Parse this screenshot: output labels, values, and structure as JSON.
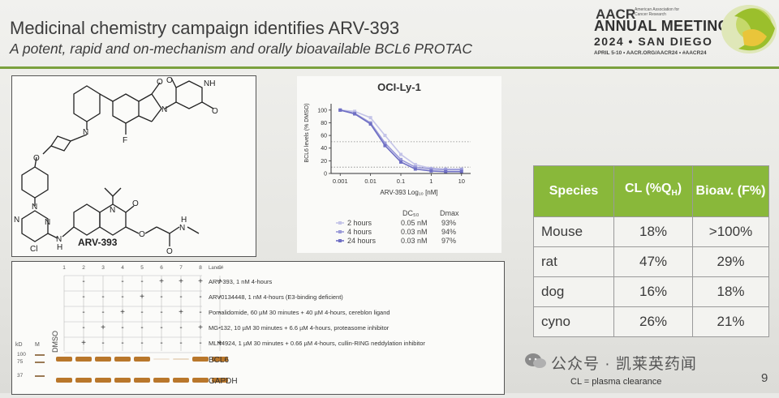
{
  "slide": {
    "title": "Medicinal chemistry campaign identifies ARV-393",
    "subtitle": "A potent, rapid and on-mechanism and orally bioavailable BCL6 PROTAC",
    "page_number": "9"
  },
  "logo": {
    "aacr": "AACR",
    "association": "American Association for Cancer Research",
    "meeting": "ANNUAL MEETING",
    "year_city": "2024 • SAN DIEGO",
    "dates": "APRIL 5-10 • AACR.ORG/AACR24 • #AACR24"
  },
  "chemistry": {
    "compound_label": "ARV-393",
    "atoms": {
      "o_top": "O",
      "o_top2": "O",
      "o_right": "O",
      "nh": "NH",
      "n1": "N",
      "n2": "N",
      "f": "F",
      "o_link": "O",
      "n_pip": "N",
      "n_pyr1": "N",
      "n_pyr2": "N",
      "cl": "Cl",
      "nh2": "N",
      "h2": "H",
      "n_q": "N",
      "o_q": "O",
      "o_e": "O",
      "o_am": "O",
      "n_am": "N",
      "h_am": "H"
    }
  },
  "chart": {
    "title": "OCI-Ly-1",
    "ylabel": "BCL6 levels (% DMSO)",
    "xlabel": "ARV-393 Log₁₀ [nM]",
    "legend_headers": {
      "dc50": "DC₅₀",
      "dmax": "Dmax"
    },
    "legend": [
      {
        "label": "2 hours",
        "dc50": "0.05 nM",
        "dmax": "93%",
        "color": "#c4c4e8"
      },
      {
        "label": "4 hours",
        "dc50": "0.03 nM",
        "dmax": "94%",
        "color": "#9a9ad8"
      },
      {
        "label": "24 hours",
        "dc50": "0.03 nM",
        "dmax": "97%",
        "color": "#6f6fc4"
      }
    ]
  },
  "chart_data": {
    "type": "line",
    "title": "OCI-Ly-1",
    "xlabel": "ARV-393 Log₁₀ [nM]",
    "ylabel": "BCL6 levels (% DMSO)",
    "xscale": "log",
    "xlim": [
      0.0005,
      20
    ],
    "ylim": [
      0,
      110
    ],
    "xticks": [
      "0.001",
      "0.01",
      "0.1",
      "1",
      "10"
    ],
    "yticks": [
      "0",
      "10",
      "20",
      "30",
      "40",
      "50",
      "60",
      "70",
      "80",
      "90",
      "100"
    ],
    "reference_lines": [
      50,
      10
    ],
    "series": [
      {
        "name": "2 hours",
        "x": [
          0.001,
          0.003,
          0.01,
          0.03,
          0.1,
          0.3,
          1,
          3,
          10
        ],
        "y": [
          100,
          98,
          88,
          60,
          30,
          14,
          8,
          7,
          7
        ]
      },
      {
        "name": "4 hours",
        "x": [
          0.001,
          0.003,
          0.01,
          0.03,
          0.1,
          0.3,
          1,
          3,
          10
        ],
        "y": [
          100,
          95,
          80,
          48,
          22,
          10,
          7,
          6,
          6
        ]
      },
      {
        "name": "24 hours",
        "x": [
          0.001,
          0.003,
          0.01,
          0.03,
          0.1,
          0.3,
          1,
          3,
          10
        ],
        "y": [
          100,
          94,
          78,
          44,
          18,
          7,
          4,
          3,
          3
        ]
      }
    ]
  },
  "blot": {
    "lanes_header": "Lane #",
    "lanes": [
      "1",
      "2",
      "3",
      "4",
      "5",
      "6",
      "7",
      "8",
      "9"
    ],
    "marker_labels": {
      "kd": "kD",
      "m": "M",
      "dmso": "DMSO"
    },
    "rows": [
      {
        "label": "ARV-393, 1 nM 4-hours",
        "marks": [
          "",
          "-",
          "",
          "-",
          "-",
          "+",
          "+",
          "+",
          "+"
        ]
      },
      {
        "label": "ARV0134448, 1 nM 4-hours (E3-binding deficient)",
        "marks": [
          "",
          "-",
          "-",
          "-",
          "+",
          "-",
          "-",
          "-",
          "-"
        ]
      },
      {
        "label": "Pomalidomide, 60 µM 30 minutes + 40 µM 4-hours, cereblon ligand",
        "marks": [
          "",
          "-",
          "-",
          "+",
          "-",
          "-",
          "+",
          "-",
          "-"
        ]
      },
      {
        "label": "MG-132, 10 µM 30 minutes + 6.6 µM 4-hours, proteasome inhibitor",
        "marks": [
          "",
          "-",
          "+",
          "-",
          "-",
          "-",
          "-",
          "+",
          "-"
        ]
      },
      {
        "label": "MLN4924, 1 µM 30 minutes + 0.66 µM 4-hours, cullin-RING neddylation inhibitor",
        "marks": [
          "",
          "+",
          "-",
          "-",
          "-",
          "-",
          "-",
          "-",
          "+"
        ]
      }
    ],
    "bands": [
      {
        "name": "BCL6",
        "marker_kd": [
          "100",
          "75"
        ],
        "color": "#b9772b"
      },
      {
        "name": "GAPDH",
        "marker_kd": [
          "37"
        ],
        "color": "#b9772b"
      }
    ]
  },
  "pk_table": {
    "headers": [
      "Species",
      "CL (%Q",
      "Bioav. (F%)"
    ],
    "header_cl_sub": "H",
    "header_cl_close": ")",
    "rows": [
      {
        "species": "Mouse",
        "cl": "18%",
        "bioav": ">100%"
      },
      {
        "species": "rat",
        "cl": "47%",
        "bioav": "29%"
      },
      {
        "species": "dog",
        "cl": "16%",
        "bioav": "18%"
      },
      {
        "species": "cyno",
        "cl": "26%",
        "bioav": "21%"
      }
    ],
    "footnote": "CL = plasma clearance"
  },
  "watermark": {
    "text": "公众号 · 凯莱英药闻"
  }
}
